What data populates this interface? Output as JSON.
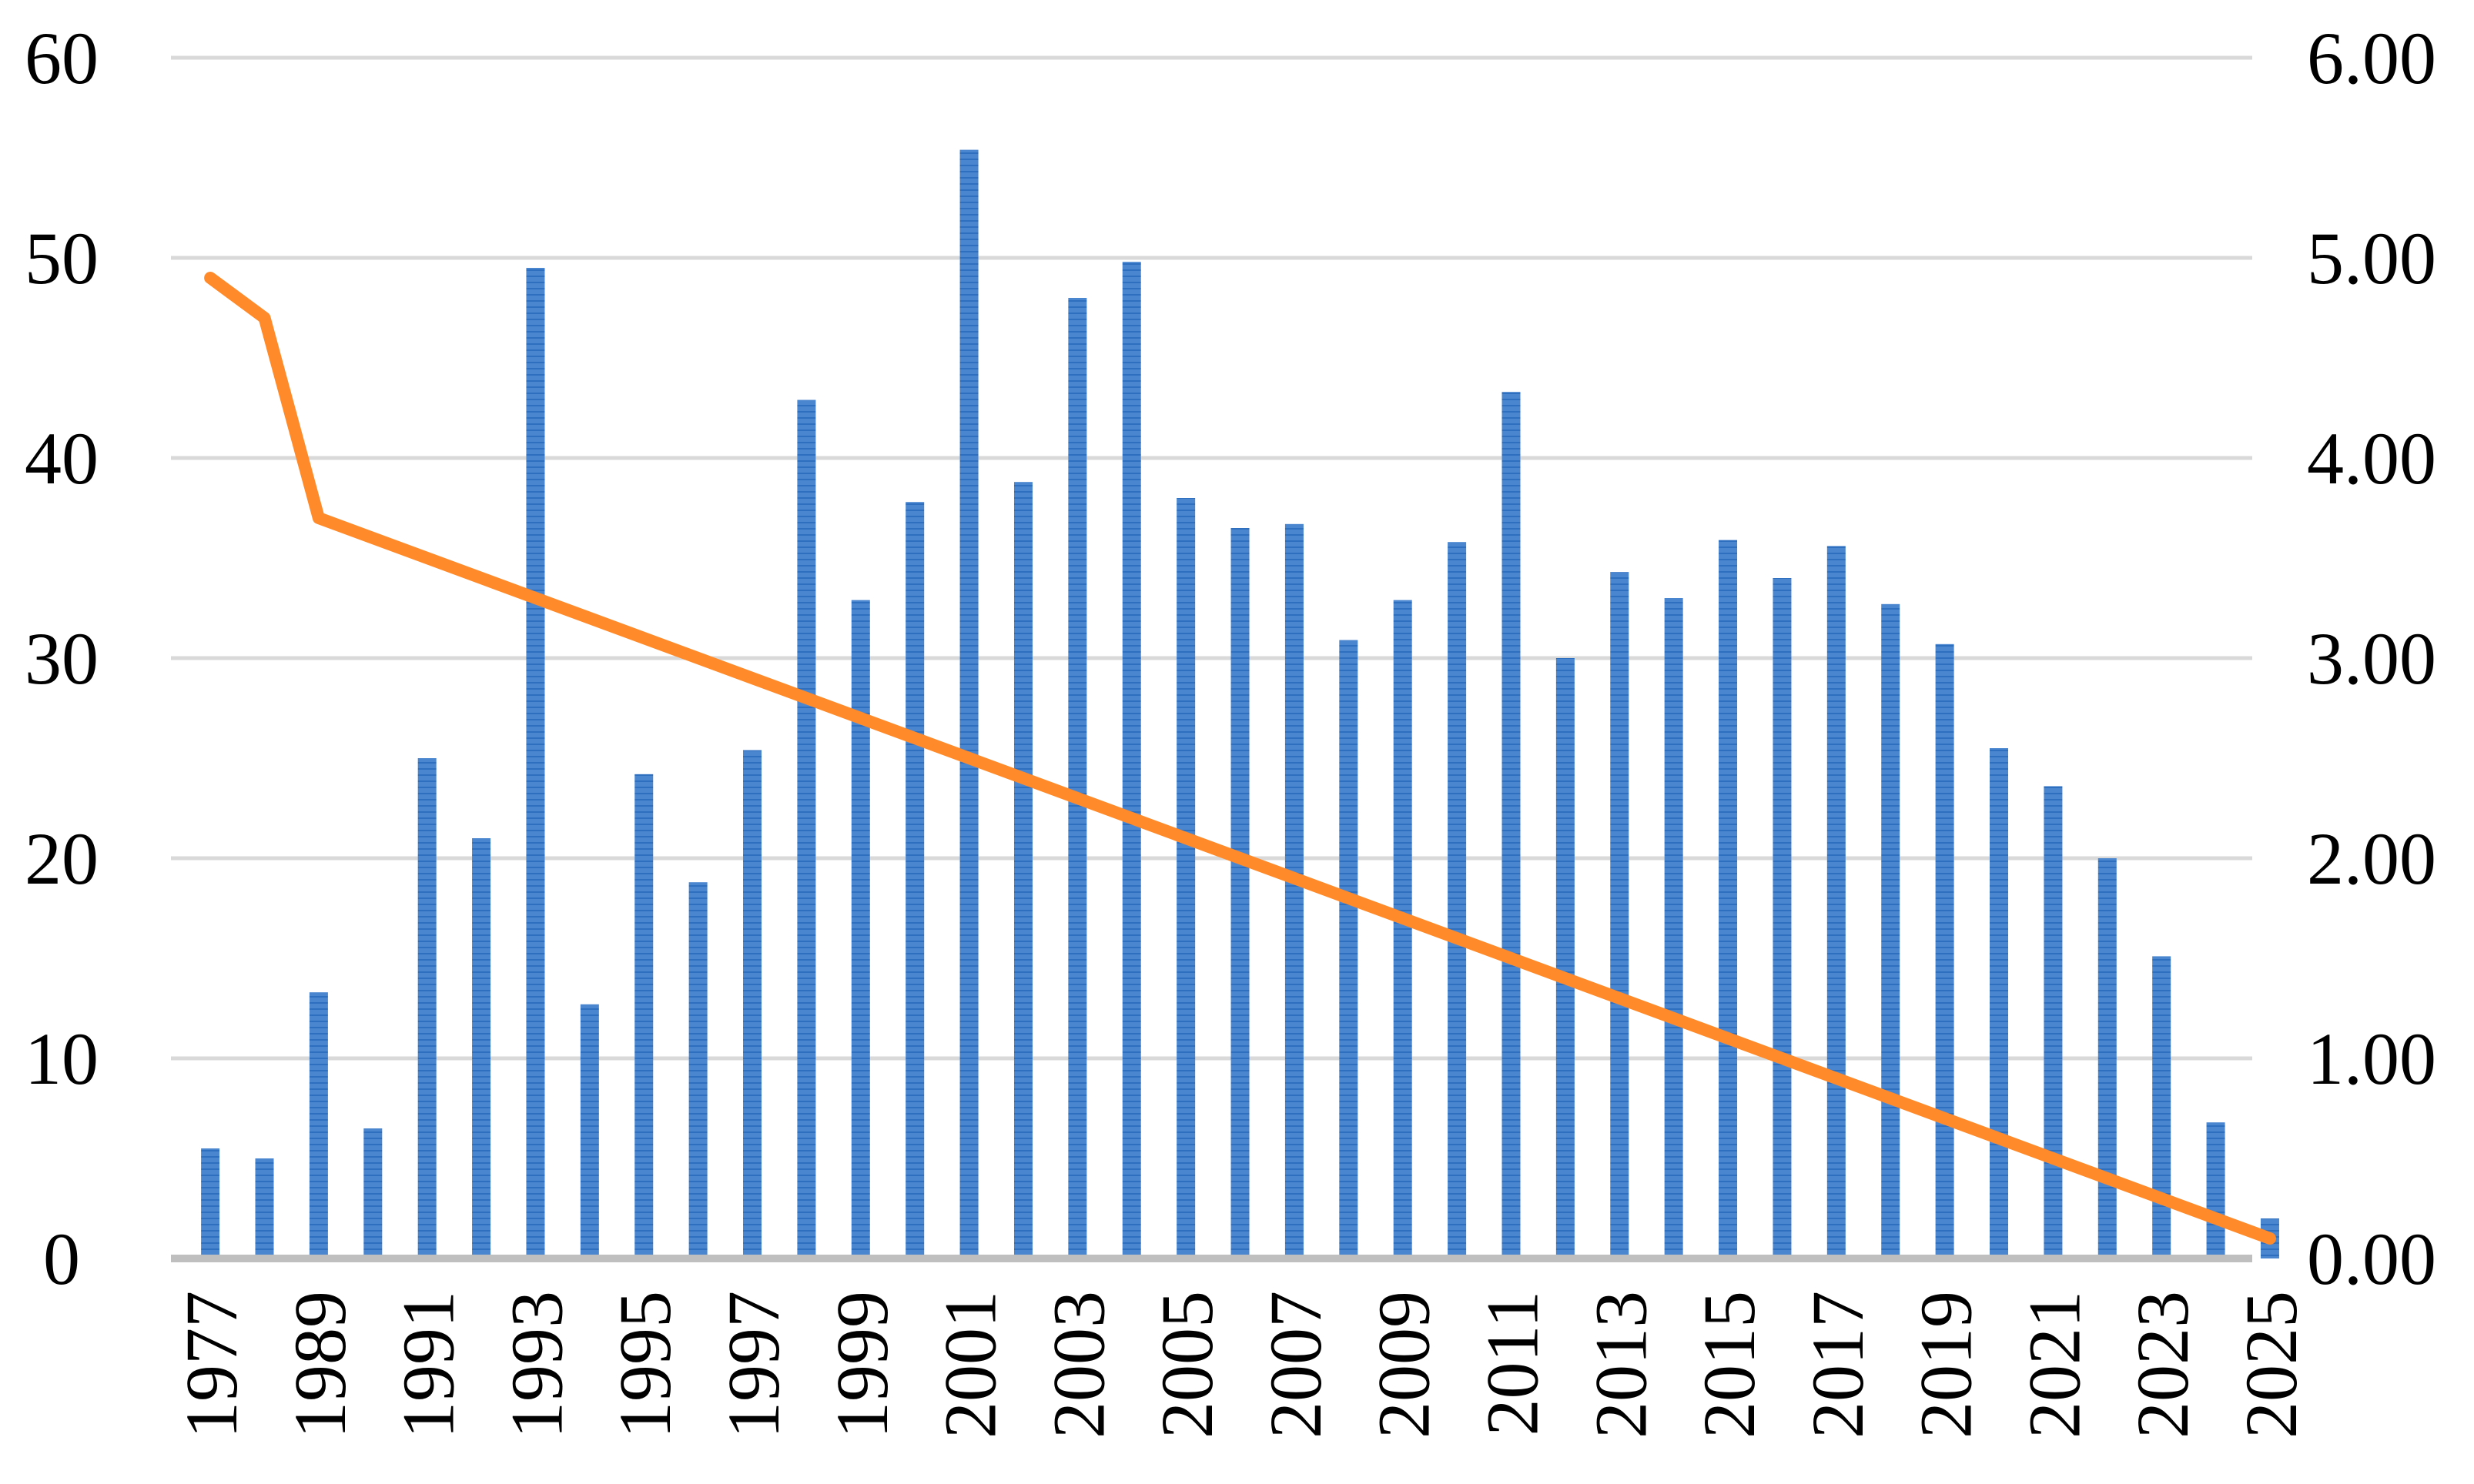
{
  "chart_data": {
    "type": "bar",
    "title": "",
    "xlabel": "",
    "ylabel": "",
    "y2label": "",
    "grid": true,
    "legend": "none",
    "x_tick_labels": [
      "1977",
      "1989",
      "1991",
      "1993",
      "1995",
      "1997",
      "1999",
      "2001",
      "2003",
      "2005",
      "2007",
      "2009",
      "2011",
      "2013",
      "2015",
      "2017",
      "2019",
      "2021",
      "2023",
      "2025"
    ],
    "ylim": [
      0,
      60
    ],
    "y_ticks": [
      "0",
      "10",
      "20",
      "30",
      "40",
      "50",
      "60"
    ],
    "y2lim": [
      0,
      6
    ],
    "y2_ticks": [
      "0.00",
      "1.00",
      "2.00",
      "3.00",
      "4.00",
      "5.00",
      "6.00"
    ],
    "bar_color": "#4a86d0",
    "line_color": "#ff8a2a",
    "series": [
      {
        "type": "bar",
        "axis": "left",
        "values": [
          5.5,
          5.0,
          13.3,
          6.5,
          25.0,
          21.0,
          49.5,
          12.7,
          24.2,
          18.8,
          25.4,
          42.9,
          32.9,
          37.8,
          55.4,
          38.8,
          48.0,
          49.8,
          38.0,
          36.5,
          36.7,
          30.9,
          32.9,
          35.8,
          43.3,
          30.0,
          34.3,
          33.0,
          35.9,
          34.0,
          35.6,
          32.7,
          30.7,
          25.5,
          23.6,
          20.0,
          15.1,
          6.8,
          2.0
        ]
      },
      {
        "type": "line",
        "axis": "right",
        "points": [
          {
            "index": 0,
            "value": 4.9
          },
          {
            "index": 1,
            "value": 4.7
          },
          {
            "index": 2,
            "value": 3.7
          },
          {
            "index": 38,
            "value": 0.1
          }
        ]
      }
    ]
  }
}
